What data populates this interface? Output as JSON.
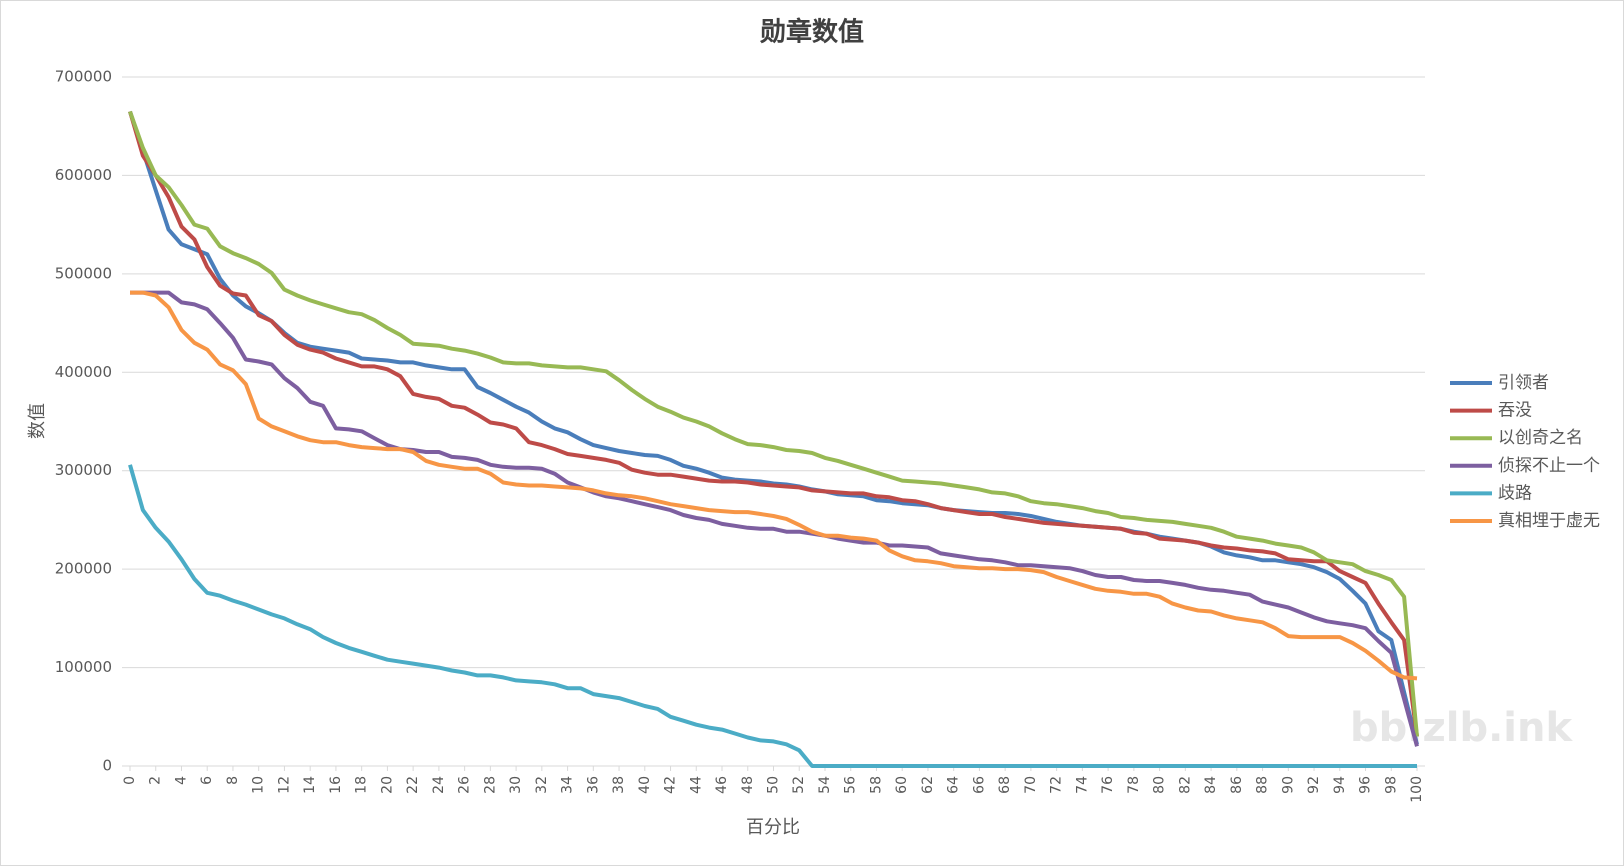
{
  "chart_data": {
    "type": "line",
    "title": "勋章数值",
    "x_label": "百分比",
    "y_label": "数值",
    "watermark": "bb.zlb.ink",
    "x": [
      0,
      1,
      2,
      3,
      4,
      5,
      6,
      7,
      8,
      9,
      10,
      11,
      12,
      13,
      14,
      15,
      16,
      17,
      18,
      19,
      20,
      21,
      22,
      23,
      24,
      25,
      26,
      27,
      28,
      29,
      30,
      31,
      32,
      33,
      34,
      35,
      36,
      37,
      38,
      39,
      40,
      41,
      42,
      43,
      44,
      45,
      46,
      47,
      48,
      49,
      50,
      51,
      52,
      53,
      54,
      55,
      56,
      57,
      58,
      59,
      60,
      61,
      62,
      63,
      64,
      65,
      66,
      67,
      68,
      69,
      70,
      71,
      72,
      73,
      74,
      75,
      76,
      77,
      78,
      79,
      80,
      81,
      82,
      83,
      84,
      85,
      86,
      87,
      88,
      89,
      90,
      91,
      92,
      93,
      94,
      95,
      96,
      97,
      98,
      99,
      100
    ],
    "xlim": [
      0,
      100
    ],
    "xticks": [
      0,
      2,
      4,
      6,
      8,
      10,
      12,
      14,
      16,
      18,
      20,
      22,
      24,
      26,
      28,
      30,
      32,
      34,
      36,
      38,
      40,
      42,
      44,
      46,
      48,
      50,
      52,
      54,
      56,
      58,
      60,
      62,
      64,
      66,
      68,
      70,
      72,
      74,
      76,
      78,
      80,
      82,
      84,
      86,
      88,
      90,
      92,
      94,
      96,
      98,
      100
    ],
    "ylim": [
      0,
      700000
    ],
    "yticks": [
      0,
      100000,
      200000,
      300000,
      400000,
      500000,
      600000,
      700000
    ],
    "grid": true,
    "legend": "right",
    "series": [
      {
        "name": "引领者",
        "color": "#4a7ebb",
        "values": [
          665000,
          625000,
          585000,
          545000,
          530000,
          525000,
          520000,
          495000,
          478000,
          467000,
          460000,
          452000,
          440000,
          430000,
          426000,
          424000,
          422000,
          420000,
          414000,
          413000,
          412000,
          410000,
          410000,
          407000,
          405000,
          403000,
          403000,
          385000,
          379000,
          372000,
          365000,
          359000,
          350000,
          343000,
          339000,
          332000,
          326000,
          323000,
          320000,
          318000,
          316000,
          315000,
          311000,
          305000,
          302000,
          298000,
          293000,
          291000,
          290000,
          289000,
          287000,
          286000,
          284000,
          281000,
          279000,
          276000,
          275000,
          274000,
          270000,
          269000,
          267000,
          266000,
          265000,
          262000,
          260000,
          259000,
          258000,
          257000,
          257000,
          256000,
          254000,
          251000,
          248000,
          246000,
          244000,
          243000,
          242000,
          241000,
          238000,
          236000,
          233000,
          231000,
          229000,
          227000,
          223000,
          217000,
          214000,
          212000,
          209000,
          209000,
          207000,
          205000,
          202000,
          197000,
          190000,
          178000,
          165000,
          137000,
          128000,
          75000,
          22000
        ]
      },
      {
        "name": "吞没",
        "color": "#be4b48",
        "values": [
          665000,
          620000,
          600000,
          578000,
          548000,
          535000,
          507000,
          488000,
          480000,
          478000,
          458000,
          452000,
          438000,
          428000,
          423000,
          420000,
          414000,
          410000,
          406000,
          406000,
          403000,
          396000,
          378000,
          375000,
          373000,
          366000,
          364000,
          357000,
          349000,
          347000,
          343000,
          329000,
          326000,
          322000,
          317000,
          315000,
          313000,
          311000,
          308000,
          301000,
          298000,
          296000,
          296000,
          294000,
          292000,
          290000,
          289000,
          289000,
          288000,
          286000,
          285000,
          284000,
          283000,
          280000,
          279000,
          278000,
          277000,
          277000,
          274000,
          273000,
          270000,
          269000,
          266000,
          262000,
          260000,
          258000,
          256000,
          256000,
          253000,
          251000,
          249000,
          247000,
          246000,
          245000,
          244000,
          243000,
          242000,
          241000,
          237000,
          236000,
          231000,
          230000,
          229000,
          227000,
          224000,
          222000,
          221000,
          219000,
          218000,
          216000,
          210000,
          209000,
          208000,
          208000,
          198000,
          192000,
          186000,
          165000,
          146000,
          128000,
          30000
        ]
      },
      {
        "name": "以创奇之名",
        "color": "#98b954",
        "values": [
          665000,
          628000,
          600000,
          588000,
          570000,
          550000,
          546000,
          528000,
          521000,
          516000,
          510000,
          501000,
          484000,
          478000,
          473000,
          469000,
          465000,
          461000,
          459000,
          453000,
          445000,
          438000,
          429000,
          428000,
          427000,
          424000,
          422000,
          419000,
          415000,
          410000,
          409000,
          409000,
          407000,
          406000,
          405000,
          405000,
          403000,
          401000,
          392000,
          382000,
          373000,
          365000,
          360000,
          354000,
          350000,
          345000,
          338000,
          332000,
          327000,
          326000,
          324000,
          321000,
          320000,
          318000,
          313000,
          310000,
          306000,
          302000,
          298000,
          294000,
          290000,
          289000,
          288000,
          287000,
          285000,
          283000,
          281000,
          278000,
          277000,
          274000,
          269000,
          267000,
          266000,
          264000,
          262000,
          259000,
          257000,
          253000,
          252000,
          250000,
          249000,
          248000,
          246000,
          244000,
          242000,
          238000,
          233000,
          231000,
          229000,
          226000,
          224000,
          222000,
          217000,
          209000,
          207000,
          205000,
          198000,
          194000,
          189000,
          172000,
          30000
        ]
      },
      {
        "name": "侦探不止一个",
        "color": "#7d5fa0",
        "values": [
          481000,
          481000,
          481000,
          481000,
          471000,
          469000,
          464000,
          450000,
          435000,
          413000,
          411000,
          408000,
          394000,
          384000,
          370000,
          366000,
          343000,
          342000,
          340000,
          333000,
          326000,
          322000,
          321000,
          319000,
          319000,
          314000,
          313000,
          311000,
          306000,
          304000,
          303000,
          303000,
          302000,
          297000,
          288000,
          283000,
          278000,
          274000,
          272000,
          269000,
          266000,
          263000,
          260000,
          255000,
          252000,
          250000,
          246000,
          244000,
          242000,
          241000,
          241000,
          238000,
          238000,
          236000,
          234000,
          231000,
          229000,
          227000,
          227000,
          224000,
          224000,
          223000,
          222000,
          216000,
          214000,
          212000,
          210000,
          209000,
          207000,
          204000,
          204000,
          203000,
          202000,
          201000,
          198000,
          194000,
          192000,
          192000,
          189000,
          188000,
          188000,
          186000,
          184000,
          181000,
          179000,
          178000,
          176000,
          174000,
          167000,
          164000,
          161000,
          156000,
          151000,
          147000,
          145000,
          143000,
          140000,
          127000,
          115000,
          68000,
          20000
        ]
      },
      {
        "name": "歧路",
        "color": "#4bacc6",
        "values": [
          306000,
          260000,
          242000,
          228000,
          210000,
          190000,
          176000,
          173000,
          168000,
          164000,
          159000,
          154000,
          150000,
          144000,
          139000,
          131000,
          125000,
          120000,
          116000,
          112000,
          108000,
          106000,
          104000,
          102000,
          100000,
          97000,
          95000,
          92000,
          92000,
          90000,
          87000,
          86000,
          85000,
          83000,
          79000,
          79000,
          73000,
          71000,
          69000,
          65000,
          61000,
          58000,
          50000,
          46000,
          42000,
          39000,
          37000,
          33000,
          29000,
          26000,
          25000,
          22000,
          16000,
          0,
          0,
          0,
          0,
          0,
          0,
          0,
          0,
          0,
          0,
          0,
          0,
          0,
          0,
          0,
          0,
          0,
          0,
          0,
          0,
          0,
          0,
          0,
          0,
          0,
          0,
          0,
          0,
          0,
          0,
          0,
          0,
          0,
          0,
          0,
          0,
          0,
          0,
          0,
          0,
          0,
          0,
          0,
          0,
          0,
          0,
          0,
          0
        ]
      },
      {
        "name": "真相埋于虚无",
        "color": "#f79646",
        "values": [
          481000,
          481000,
          478000,
          466000,
          443000,
          430000,
          423000,
          408000,
          402000,
          388000,
          353000,
          345000,
          340000,
          335000,
          331000,
          329000,
          329000,
          326000,
          324000,
          323000,
          322000,
          322000,
          319000,
          310000,
          306000,
          304000,
          302000,
          302000,
          297000,
          288000,
          286000,
          285000,
          285000,
          284000,
          283000,
          282000,
          280000,
          277000,
          275000,
          274000,
          272000,
          269000,
          266000,
          264000,
          262000,
          260000,
          259000,
          258000,
          258000,
          256000,
          254000,
          251000,
          245000,
          238000,
          234000,
          234000,
          232000,
          231000,
          229000,
          219000,
          213000,
          209000,
          208000,
          206000,
          203000,
          202000,
          201000,
          201000,
          200000,
          200000,
          199000,
          197000,
          192000,
          188000,
          184000,
          180000,
          178000,
          177000,
          175000,
          175000,
          172000,
          165000,
          161000,
          158000,
          157000,
          153000,
          150000,
          148000,
          146000,
          140000,
          132000,
          131000,
          131000,
          131000,
          131000,
          125000,
          117000,
          107000,
          96000,
          90000,
          89000
        ]
      }
    ]
  }
}
